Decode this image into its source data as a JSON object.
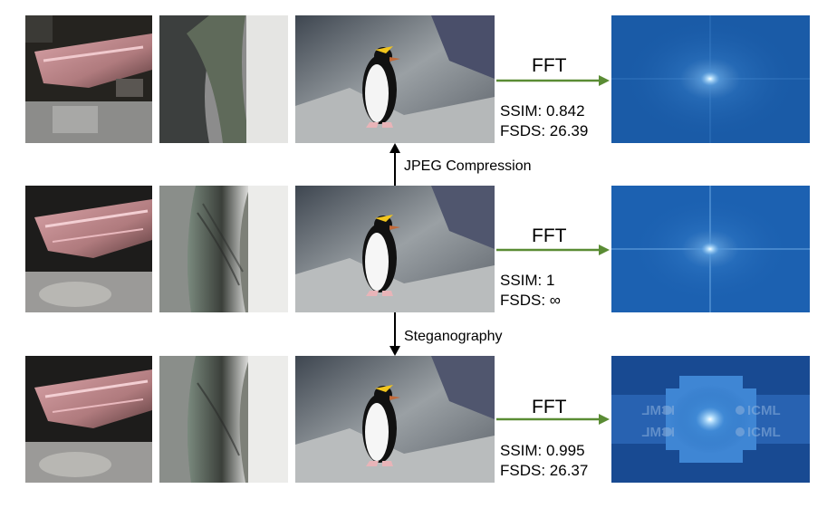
{
  "rows": [
    {
      "id": "jpeg",
      "fft_label": "FFT",
      "ssim_text": "SSIM: 0.842",
      "fsds_text": "FSDS: 26.39",
      "spectrum_image": "fft-spectrum-jpeg"
    },
    {
      "id": "original",
      "fft_label": "FFT",
      "ssim_text": "SSIM: 1",
      "fsds_text": "FSDS: ∞",
      "spectrum_image": "fft-spectrum-original"
    },
    {
      "id": "stego",
      "fft_label": "FFT",
      "ssim_text": "SSIM: 0.995",
      "fsds_text": "FSDS: 26.37",
      "spectrum_image": "fft-spectrum-stego"
    }
  ],
  "operations": {
    "jpeg_label": "JPEG Compression",
    "stego_label": "Steganography"
  },
  "watermark_text": "ICML",
  "colors": {
    "fft_arrow": "#5a8c34",
    "spectrum_bg": "#1b5fae",
    "spectrum_center": "#e8f6ff",
    "rock": "#8a8f93",
    "penguin_body": "#111111",
    "penguin_belly": "#f4f4f4",
    "crest": "#f2c51d"
  }
}
